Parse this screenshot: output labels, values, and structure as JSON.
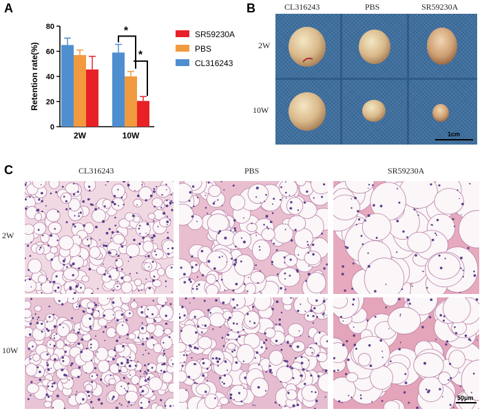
{
  "panels": {
    "a": "A",
    "b": "B",
    "c": "C"
  },
  "chart_data": {
    "type": "bar",
    "ylabel": "Retention rate(%)",
    "xlabel": "",
    "ylim": [
      0,
      80
    ],
    "yticks": [
      "0",
      "20",
      "40",
      "60",
      "80"
    ],
    "categories": [
      "2W",
      "10W"
    ],
    "series": [
      {
        "name": "CL316243",
        "color": "#4f8fd0",
        "values": [
          65,
          59
        ],
        "errors": [
          5.5,
          6.5
        ]
      },
      {
        "name": "PBS",
        "color": "#f29a3f",
        "values": [
          57,
          40
        ],
        "errors": [
          4,
          4
        ]
      },
      {
        "name": "SR59230A",
        "color": "#e82127",
        "values": [
          45.5,
          20.5
        ],
        "errors": [
          10.5,
          3.5
        ]
      }
    ],
    "legend_order": [
      "SR59230A",
      "PBS",
      "CL316243"
    ],
    "legend_position": "right",
    "significance": [
      "*",
      "*"
    ]
  },
  "panel_b": {
    "columns": [
      "CL316243",
      "PBS",
      "SR59230A"
    ],
    "rows": [
      "2W",
      "10W"
    ],
    "scalebar": "1cm"
  },
  "panel_c": {
    "columns": [
      "CL316243",
      "PBS",
      "SR59230A"
    ],
    "rows": [
      "2W",
      "10W"
    ],
    "scalebar": "50μm"
  }
}
